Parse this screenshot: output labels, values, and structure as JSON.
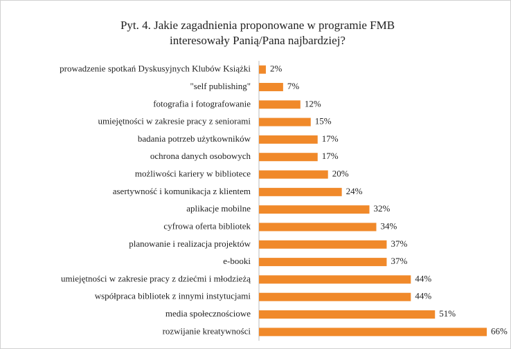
{
  "chart_data": {
    "type": "bar",
    "orientation": "horizontal",
    "title": [
      "Pyt. 4. Jakie zagadnienia proponowane w programie FMB",
      "interesowały Panią/Pana najbardziej?"
    ],
    "categories": [
      "prowadzenie spotkań Dyskusyjnych Klubów Książki",
      "\"self publishing\"",
      "fotografia i fotografowanie",
      "umiejętności w zakresie pracy z seniorami",
      "badania potrzeb użytkowników",
      "ochrona danych osobowych",
      "możliwości kariery w bibliotece",
      "asertywność i komunikacja z klientem",
      "aplikacje mobilne",
      "cyfrowa oferta bibliotek",
      "planowanie i realizacja projektów",
      "e-booki",
      "umiejętności w zakresie pracy z dziećmi i młodzieżą",
      "współpraca bibliotek z innymi instytucjami",
      "media społecznościowe",
      "rozwijanie kreatywności"
    ],
    "values": [
      2,
      7,
      12,
      15,
      17,
      17,
      20,
      24,
      32,
      34,
      37,
      37,
      44,
      44,
      51,
      66
    ],
    "value_labels": [
      "2%",
      "7%",
      "12%",
      "15%",
      "17%",
      "17%",
      "20%",
      "24%",
      "32%",
      "34%",
      "37%",
      "37%",
      "44%",
      "44%",
      "51%",
      "66%"
    ],
    "color": "#f0892a"
  }
}
